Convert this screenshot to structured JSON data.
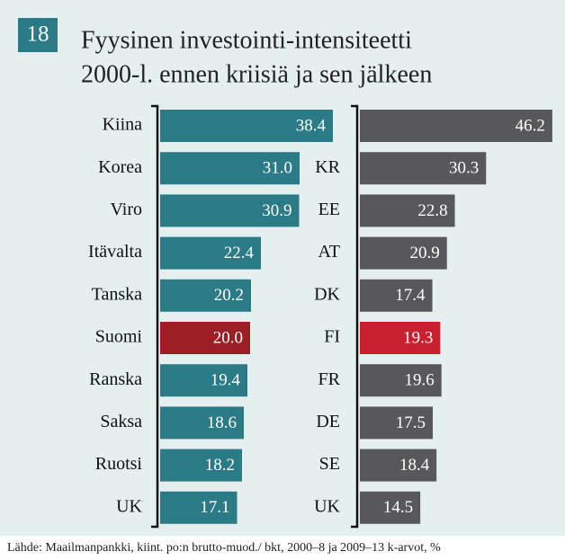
{
  "header": {
    "number": "18",
    "title": [
      "Fyysinen investointi-intensiteetti",
      "2000-l. ennen kriisiä ja sen jälkeen"
    ]
  },
  "source": "Lähde: Maailmanpankki, kiint. po:n brutto-muod./ bkt, 2000–8 ja 2009–13 k-arvot, %",
  "chart_data": [
    {
      "type": "bar",
      "orientation": "horizontal",
      "categories": [
        "Kiina",
        "Korea",
        "Viro",
        "Itävalta",
        "Tanska",
        "Suomi",
        "Ranska",
        "Saksa",
        "Ruotsi",
        "UK"
      ],
      "values": [
        38.4,
        31.0,
        30.9,
        22.4,
        20.2,
        20.0,
        19.4,
        18.6,
        18.2,
        17.1
      ],
      "value_labels": [
        "38.4",
        "31.0",
        "30.9",
        "22.4",
        "20.2",
        "20.0",
        "19.4",
        "18.6",
        "18.2",
        "17.1"
      ],
      "colors": [
        "#2b7b87",
        "#2b7b87",
        "#2b7b87",
        "#2b7b87",
        "#2b7b87",
        "#9d1e25",
        "#2b7b87",
        "#2b7b87",
        "#2b7b87",
        "#2b7b87"
      ]
    },
    {
      "type": "bar",
      "orientation": "horizontal",
      "categories": [
        null,
        "KR",
        "EE",
        "AT",
        "DK",
        "FI",
        "FR",
        "DE",
        "SE",
        "UK"
      ],
      "values": [
        46.2,
        30.3,
        22.8,
        20.9,
        17.4,
        19.3,
        19.6,
        17.5,
        18.4,
        14.5
      ],
      "value_labels": [
        "46.2",
        "30.3",
        "22.8",
        "20.9",
        "17.4",
        "19.3",
        "19.6",
        "17.5",
        "18.4",
        "14.5"
      ],
      "colors": [
        "#58585a",
        "#58585a",
        "#58585a",
        "#58585a",
        "#58585a",
        "#c9202f",
        "#58585a",
        "#58585a",
        "#58585a",
        "#58585a"
      ]
    }
  ]
}
